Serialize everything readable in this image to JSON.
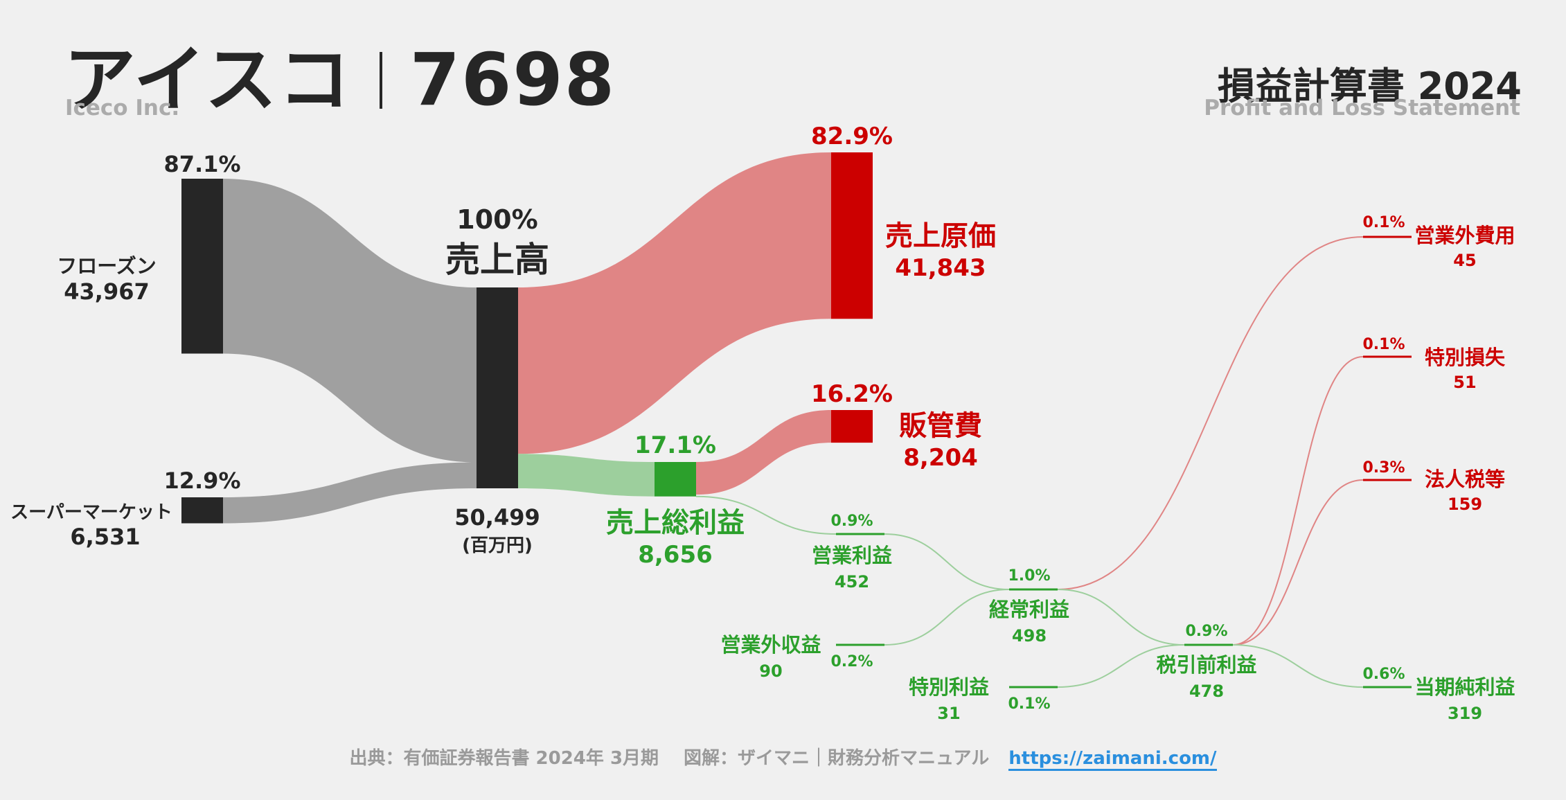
{
  "header": {
    "company": "アイスコ",
    "code": "7698",
    "company_en": "Iceco Inc.",
    "statement": "損益計算書 2024",
    "statement_en": "Profit and Loss Statement"
  },
  "footer": {
    "source": "出典：有価証券報告書 2024年 3月期",
    "credit": "図解：ザイマニ｜財務分析マニュアル",
    "url": "https://zaimani.com/"
  },
  "colors": {
    "background": "#f0f0f0",
    "neutral_node": "#262626",
    "neutral_flow": "#a0a0a0",
    "cost_node": "#cc0000",
    "cost_flow": "#e08585",
    "cost_text": "#cc0000",
    "profit_node": "#2ca02c",
    "profit_flow": "#9dcf9d",
    "profit_text": "#2ca02c",
    "link_url": "#2a8fde"
  },
  "chart_data": {
    "type": "sankey",
    "unit": "(百万円)",
    "nodes": [
      {
        "id": "frozen",
        "label": "フローズン",
        "value": "43,967",
        "pct": "87.1%",
        "kind": "neutral"
      },
      {
        "id": "super",
        "label": "スーパーマーケット",
        "value": "6,531",
        "pct": "12.9%",
        "kind": "neutral"
      },
      {
        "id": "revenue",
        "label": "売上高",
        "value": "50,499",
        "pct": "100%",
        "kind": "neutral"
      },
      {
        "id": "cogs",
        "label": "売上原価",
        "value": "41,843",
        "pct": "82.9%",
        "kind": "cost"
      },
      {
        "id": "gross",
        "label": "売上総利益",
        "value": "8,656",
        "pct": "17.1%",
        "kind": "profit"
      },
      {
        "id": "sga",
        "label": "販管費",
        "value": "8,204",
        "pct": "16.2%",
        "kind": "cost"
      },
      {
        "id": "opinc",
        "label": "営業利益",
        "value": "452",
        "pct": "0.9%",
        "kind": "profit"
      },
      {
        "id": "nonopinc",
        "label": "営業外収益",
        "value": "90",
        "pct": "0.2%",
        "kind": "profit"
      },
      {
        "id": "nonopexp",
        "label": "営業外費用",
        "value": "45",
        "pct": "0.1%",
        "kind": "cost"
      },
      {
        "id": "ordinary",
        "label": "経常利益",
        "value": "498",
        "pct": "1.0%",
        "kind": "profit"
      },
      {
        "id": "extgain",
        "label": "特別利益",
        "value": "31",
        "pct": "0.1%",
        "kind": "profit"
      },
      {
        "id": "extloss",
        "label": "特別損失",
        "value": "51",
        "pct": "0.1%",
        "kind": "cost"
      },
      {
        "id": "pretax",
        "label": "税引前利益",
        "value": "478",
        "pct": "0.9%",
        "kind": "profit"
      },
      {
        "id": "tax",
        "label": "法人税等",
        "value": "159",
        "pct": "0.3%",
        "kind": "cost"
      },
      {
        "id": "net",
        "label": "当期純利益",
        "value": "319",
        "pct": "0.6%",
        "kind": "profit"
      }
    ],
    "links": [
      {
        "source": "frozen",
        "target": "revenue",
        "value": 43967
      },
      {
        "source": "super",
        "target": "revenue",
        "value": 6531
      },
      {
        "source": "revenue",
        "target": "cogs",
        "value": 41843
      },
      {
        "source": "revenue",
        "target": "gross",
        "value": 8656
      },
      {
        "source": "gross",
        "target": "sga",
        "value": 8204
      },
      {
        "source": "gross",
        "target": "opinc",
        "value": 452
      },
      {
        "source": "opinc",
        "target": "ordinary",
        "value": 452
      },
      {
        "source": "nonopinc",
        "target": "ordinary",
        "value": 90
      },
      {
        "source": "ordinary",
        "target": "nonopexp",
        "value": 45
      },
      {
        "source": "ordinary",
        "target": "pretax",
        "value": 498
      },
      {
        "source": "extgain",
        "target": "pretax",
        "value": 31
      },
      {
        "source": "pretax",
        "target": "extloss",
        "value": 51
      },
      {
        "source": "pretax",
        "target": "tax",
        "value": 159
      },
      {
        "source": "pretax",
        "target": "net",
        "value": 319
      }
    ]
  }
}
